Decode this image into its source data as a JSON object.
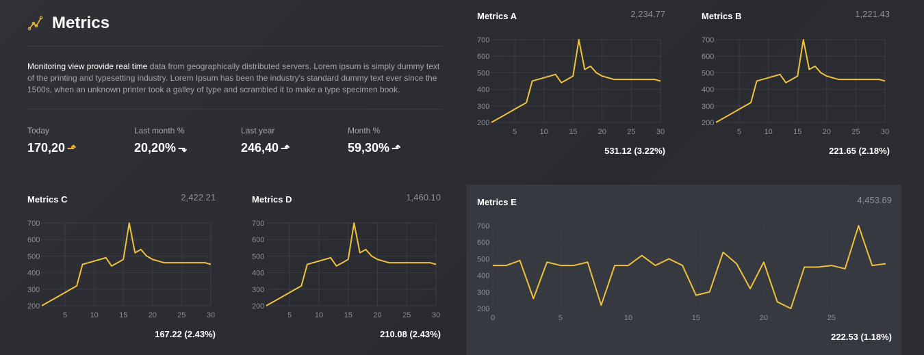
{
  "header": {
    "title": "Metrics",
    "icon": "line-chart-icon",
    "accent": "#f0c23b"
  },
  "description": {
    "highlight": "Monitoring view provide real time",
    "text": " data from geographically distributed servers. Lorem ipsum is simply dummy text of the printing and typesetting industry. Lorem Ipsum has been the industry's standard dummy text ever since the 1500s, when an unknown printer took a galley of type and scrambled it to make a type specimen book."
  },
  "stats": [
    {
      "label": "Today",
      "value": "170,20",
      "trend": "up",
      "arrow": "⮥",
      "color": "#f0b43b"
    },
    {
      "label": "Last month %",
      "value": "20,20%",
      "trend": "down",
      "arrow": "⮧",
      "color": "#ffffff"
    },
    {
      "label": "Last year",
      "value": "246,40",
      "trend": "up",
      "arrow": "⮥",
      "color": "#ffffff"
    },
    {
      "label": "Month %",
      "value": "59,30%",
      "trend": "up",
      "arrow": "⮥",
      "color": "#ffffff"
    }
  ],
  "chart_data": [
    {
      "id": "A",
      "type": "line",
      "title": "Metrics A",
      "total": "2,234.77",
      "footer": "531.12 (3.22%)",
      "xlim": [
        1,
        30
      ],
      "ylim": [
        200,
        700
      ],
      "xticks": [
        5,
        10,
        15,
        20,
        25,
        30
      ],
      "yticks": [
        200,
        300,
        400,
        500,
        600,
        700
      ],
      "grid": true,
      "color": "#f0c23b",
      "x": [
        1,
        2,
        3,
        4,
        5,
        6,
        7,
        8,
        9,
        10,
        11,
        12,
        13,
        14,
        15,
        16,
        17,
        18,
        19,
        20,
        21,
        22,
        23,
        24,
        25,
        26,
        27,
        28,
        29,
        30
      ],
      "y": [
        200,
        220,
        240,
        260,
        280,
        300,
        320,
        450,
        460,
        470,
        480,
        490,
        440,
        460,
        480,
        700,
        520,
        540,
        500,
        480,
        470,
        460,
        460,
        460,
        460,
        460,
        460,
        460,
        460,
        450
      ]
    },
    {
      "id": "B",
      "type": "line",
      "title": "Metrics B",
      "total": "1,221.43",
      "footer": "221.65 (2.18%)",
      "xlim": [
        1,
        30
      ],
      "ylim": [
        200,
        700
      ],
      "xticks": [
        5,
        10,
        15,
        20,
        25,
        30
      ],
      "yticks": [
        200,
        300,
        400,
        500,
        600,
        700
      ],
      "grid": true,
      "color": "#f0c23b",
      "x": [
        1,
        2,
        3,
        4,
        5,
        6,
        7,
        8,
        9,
        10,
        11,
        12,
        13,
        14,
        15,
        16,
        17,
        18,
        19,
        20,
        21,
        22,
        23,
        24,
        25,
        26,
        27,
        28,
        29,
        30
      ],
      "y": [
        200,
        220,
        240,
        260,
        280,
        300,
        320,
        450,
        460,
        470,
        480,
        490,
        440,
        460,
        480,
        700,
        520,
        540,
        500,
        480,
        470,
        460,
        460,
        460,
        460,
        460,
        460,
        460,
        460,
        450
      ]
    },
    {
      "id": "C",
      "type": "line",
      "title": "Metrics C",
      "total": "2,422.21",
      "footer": "167.22 (2.43%)",
      "xlim": [
        1,
        30
      ],
      "ylim": [
        200,
        700
      ],
      "xticks": [
        5,
        10,
        15,
        20,
        25,
        30
      ],
      "yticks": [
        200,
        300,
        400,
        500,
        600,
        700
      ],
      "grid": true,
      "color": "#f0c23b",
      "x": [
        1,
        2,
        3,
        4,
        5,
        6,
        7,
        8,
        9,
        10,
        11,
        12,
        13,
        14,
        15,
        16,
        17,
        18,
        19,
        20,
        21,
        22,
        23,
        24,
        25,
        26,
        27,
        28,
        29,
        30
      ],
      "y": [
        200,
        220,
        240,
        260,
        280,
        300,
        320,
        450,
        460,
        470,
        480,
        490,
        440,
        460,
        480,
        700,
        520,
        540,
        500,
        480,
        470,
        460,
        460,
        460,
        460,
        460,
        460,
        460,
        460,
        450
      ]
    },
    {
      "id": "D",
      "type": "line",
      "title": "Metrics D",
      "total": "1,460.10",
      "footer": "210.08 (2.43%)",
      "xlim": [
        1,
        30
      ],
      "ylim": [
        200,
        700
      ],
      "xticks": [
        5,
        10,
        15,
        20,
        25,
        30
      ],
      "yticks": [
        200,
        300,
        400,
        500,
        600,
        700
      ],
      "grid": true,
      "color": "#f0c23b",
      "x": [
        1,
        2,
        3,
        4,
        5,
        6,
        7,
        8,
        9,
        10,
        11,
        12,
        13,
        14,
        15,
        16,
        17,
        18,
        19,
        20,
        21,
        22,
        23,
        24,
        25,
        26,
        27,
        28,
        29,
        30
      ],
      "y": [
        200,
        220,
        240,
        260,
        280,
        300,
        320,
        450,
        460,
        470,
        480,
        490,
        440,
        460,
        480,
        700,
        520,
        540,
        500,
        480,
        470,
        460,
        460,
        460,
        460,
        460,
        460,
        460,
        460,
        450
      ]
    },
    {
      "id": "E",
      "type": "line",
      "title": "Metrics E",
      "total": "4,453.69",
      "footer": "222.53 (1.18%)",
      "xlim": [
        0,
        29
      ],
      "ylim": [
        200,
        700
      ],
      "xticks": [
        0,
        5,
        10,
        15,
        20,
        25
      ],
      "yticks": [
        200,
        300,
        400,
        500,
        600,
        700
      ],
      "grid": true,
      "color": "#f0c23b",
      "x": [
        0,
        1,
        2,
        3,
        4,
        5,
        6,
        7,
        8,
        9,
        10,
        11,
        12,
        13,
        14,
        15,
        16,
        17,
        18,
        19,
        20,
        21,
        22,
        23,
        24,
        25,
        26,
        27,
        28,
        29
      ],
      "y": [
        460,
        460,
        490,
        260,
        480,
        460,
        460,
        480,
        220,
        460,
        460,
        520,
        460,
        500,
        460,
        280,
        300,
        540,
        470,
        320,
        480,
        240,
        200,
        450,
        450,
        460,
        440,
        700,
        460,
        470
      ]
    }
  ]
}
